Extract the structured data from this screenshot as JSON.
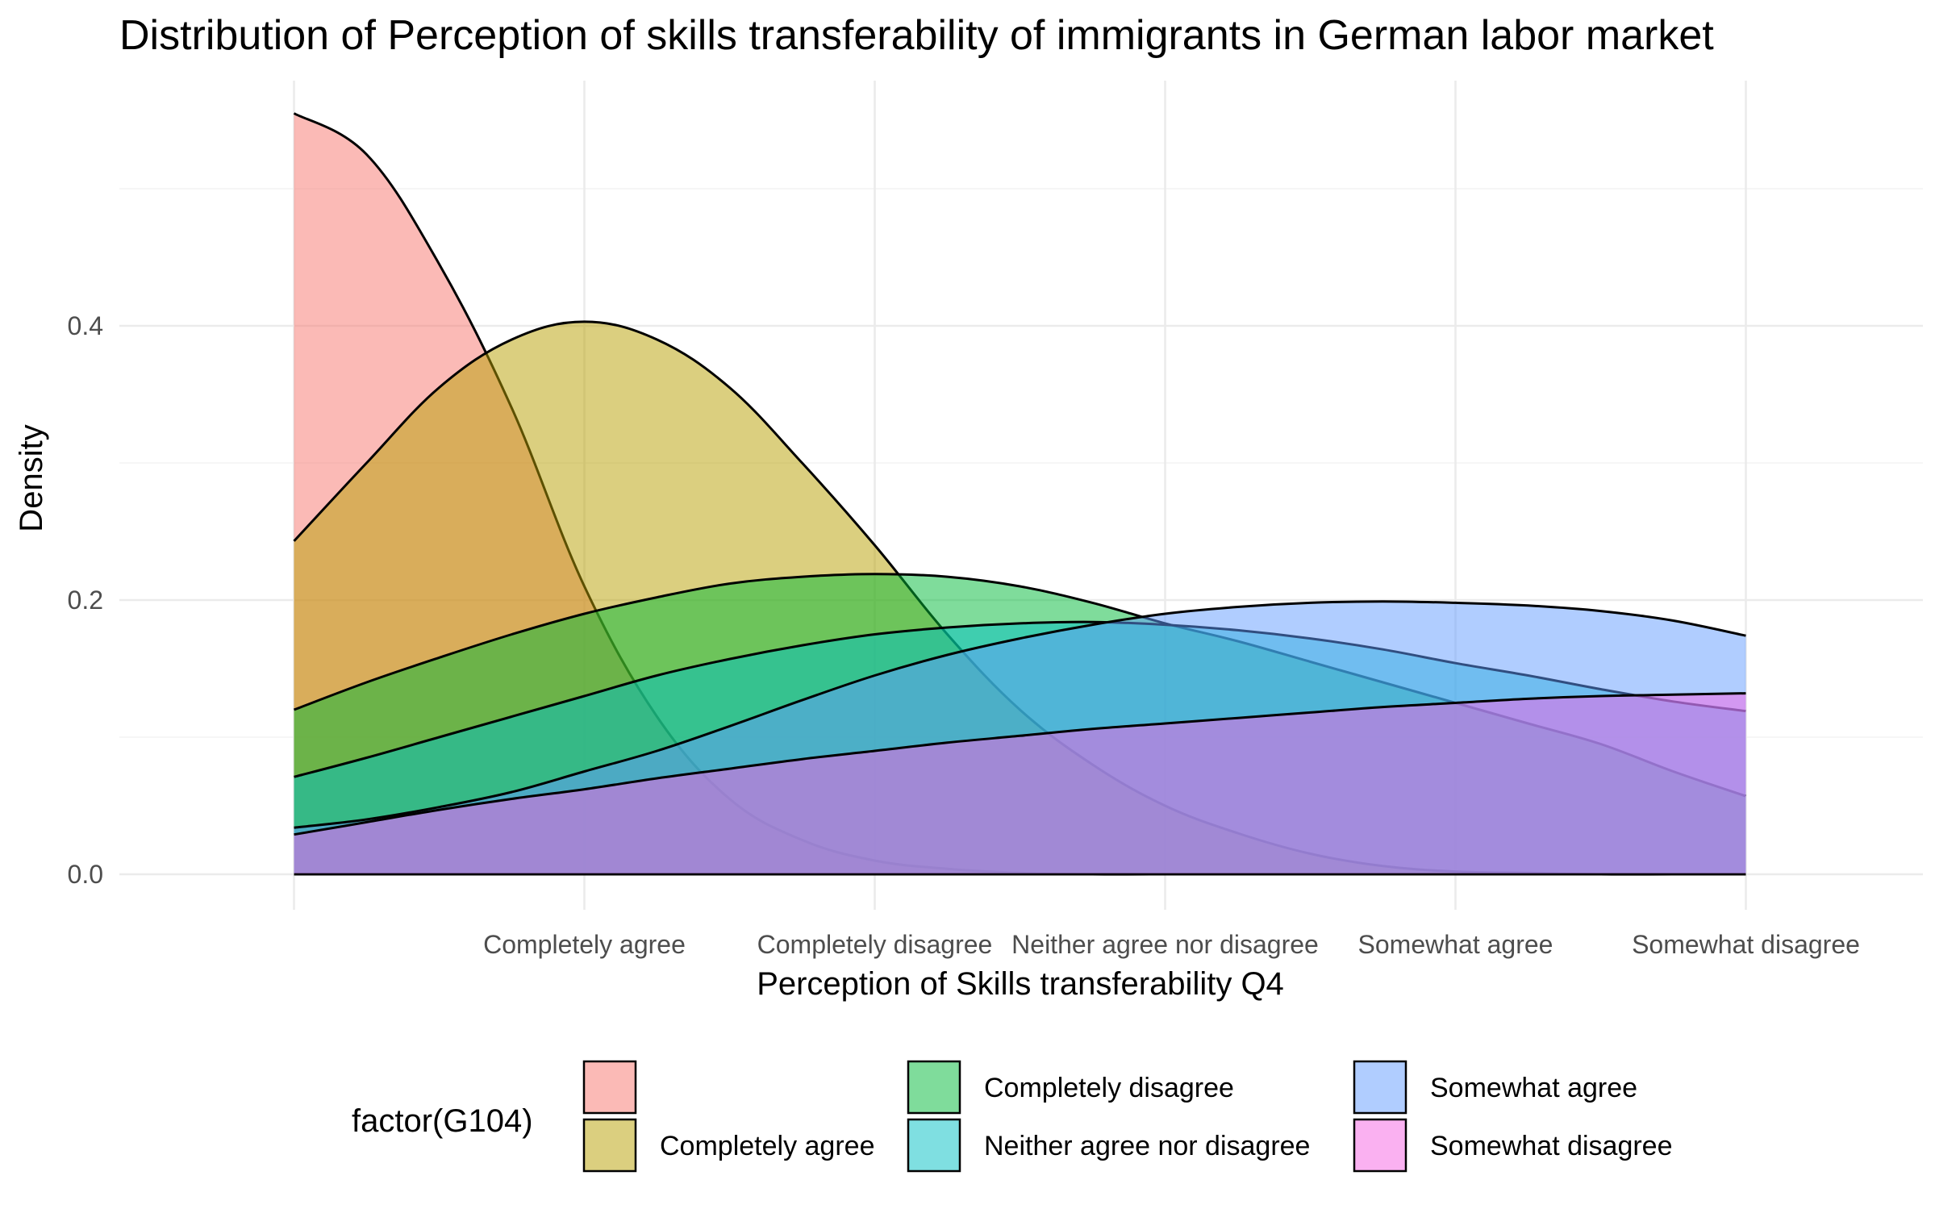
{
  "chart_data": {
    "type": "area",
    "title": "Distribution of Perception of skills transferability of immigrants in German labor market",
    "xlabel": "Perception of Skills transferability Q4",
    "ylabel": "Density",
    "x_categories": [
      "",
      "Completely agree",
      "Completely disagree",
      "Neither agree nor disagree",
      "Somewhat agree",
      "Somewhat disagree"
    ],
    "x_tick_labels": [
      "Completely agree",
      "Completely disagree",
      "Neither agree nor disagree",
      "Somewhat agree",
      "Somewhat disagree"
    ],
    "x_range": [
      1,
      6
    ],
    "ylim": [
      0,
      0.57
    ],
    "y_ticks": [
      0.0,
      0.2,
      0.4
    ],
    "y_tick_labels": [
      "0.0",
      "0.2",
      "0.4"
    ],
    "grid": true,
    "legend": {
      "title": "factor(G104)",
      "position": "bottom"
    },
    "series": [
      {
        "name": "",
        "color": "#F8766D",
        "x": [
          1.0,
          1.25,
          1.5,
          1.75,
          2.0,
          2.25,
          2.5,
          2.75,
          3.0,
          3.25,
          3.5,
          3.75,
          4.0
        ],
        "y": [
          0.555,
          0.525,
          0.445,
          0.34,
          0.21,
          0.115,
          0.055,
          0.025,
          0.01,
          0.004,
          0.001,
          0.0,
          0.0
        ]
      },
      {
        "name": "Completely agree",
        "color": "#B79F00",
        "x": [
          1.0,
          1.25,
          1.5,
          1.75,
          2.0,
          2.25,
          2.5,
          2.75,
          3.0,
          3.25,
          3.5,
          3.75,
          4.0,
          4.25,
          4.5,
          4.75,
          5.0,
          5.25,
          5.5,
          5.75,
          6.0
        ],
        "y": [
          0.243,
          0.3,
          0.355,
          0.39,
          0.403,
          0.39,
          0.355,
          0.3,
          0.24,
          0.175,
          0.12,
          0.08,
          0.05,
          0.03,
          0.015,
          0.006,
          0.002,
          0.001,
          0.0,
          0.0,
          0.0
        ]
      },
      {
        "name": "Completely disagree",
        "color": "#00BA38",
        "x": [
          1.0,
          1.25,
          1.5,
          1.75,
          2.0,
          2.25,
          2.5,
          2.75,
          3.0,
          3.25,
          3.5,
          3.75,
          4.0,
          4.25,
          4.5,
          4.75,
          5.0,
          5.25,
          5.5,
          5.75,
          6.0
        ],
        "y": [
          0.12,
          0.14,
          0.158,
          0.175,
          0.19,
          0.202,
          0.212,
          0.217,
          0.219,
          0.217,
          0.21,
          0.198,
          0.183,
          0.17,
          0.155,
          0.14,
          0.125,
          0.11,
          0.095,
          0.075,
          0.057
        ]
      },
      {
        "name": "Neither agree nor disagree",
        "color": "#00BFC4",
        "x": [
          1.0,
          1.25,
          1.5,
          1.75,
          2.0,
          2.25,
          2.5,
          2.75,
          3.0,
          3.25,
          3.5,
          3.75,
          4.0,
          4.25,
          4.5,
          4.75,
          5.0,
          5.25,
          5.5,
          5.75,
          6.0
        ],
        "y": [
          0.071,
          0.085,
          0.1,
          0.115,
          0.13,
          0.145,
          0.157,
          0.167,
          0.175,
          0.18,
          0.183,
          0.184,
          0.182,
          0.178,
          0.172,
          0.164,
          0.154,
          0.145,
          0.135,
          0.126,
          0.119
        ]
      },
      {
        "name": "Somewhat agree",
        "color": "#619CFF",
        "x": [
          1.0,
          1.25,
          1.5,
          1.75,
          2.0,
          2.25,
          2.5,
          2.75,
          3.0,
          3.25,
          3.5,
          3.75,
          4.0,
          4.25,
          4.5,
          4.75,
          5.0,
          5.25,
          5.5,
          5.75,
          6.0
        ],
        "y": [
          0.034,
          0.04,
          0.049,
          0.06,
          0.075,
          0.09,
          0.108,
          0.127,
          0.145,
          0.16,
          0.172,
          0.182,
          0.19,
          0.195,
          0.198,
          0.199,
          0.198,
          0.196,
          0.192,
          0.185,
          0.174
        ]
      },
      {
        "name": "Somewhat disagree",
        "color": "#F564E3",
        "x": [
          1.0,
          1.25,
          1.5,
          1.75,
          2.0,
          2.25,
          2.5,
          2.75,
          3.0,
          3.25,
          3.5,
          3.75,
          4.0,
          4.25,
          4.5,
          4.75,
          5.0,
          5.25,
          5.5,
          5.75,
          6.0
        ],
        "y": [
          0.029,
          0.038,
          0.047,
          0.055,
          0.062,
          0.07,
          0.077,
          0.084,
          0.09,
          0.096,
          0.101,
          0.106,
          0.11,
          0.114,
          0.118,
          0.122,
          0.125,
          0.128,
          0.13,
          0.131,
          0.132
        ]
      }
    ]
  }
}
